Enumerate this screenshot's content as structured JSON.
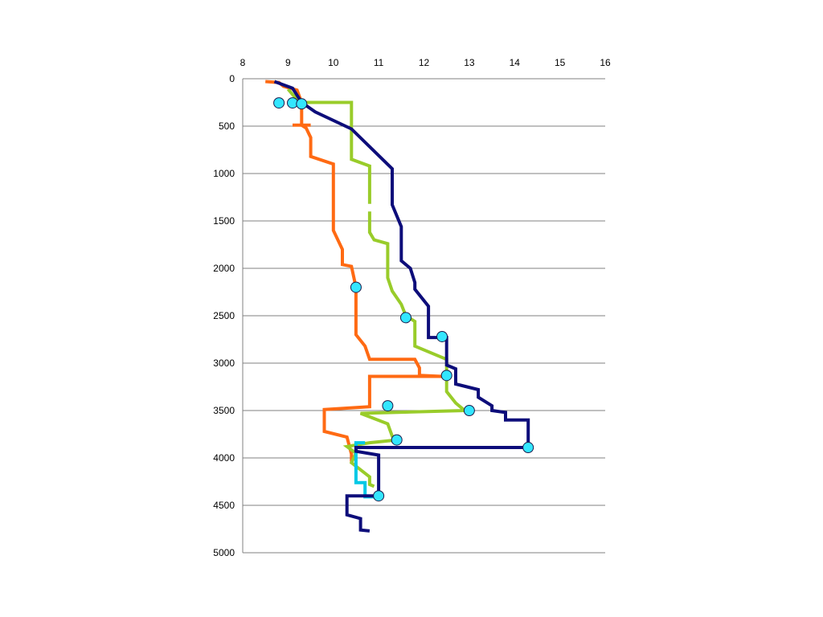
{
  "chart_data": {
    "type": "line",
    "xlim": [
      8,
      16
    ],
    "ylim": [
      0,
      5000
    ],
    "y_reversed": true,
    "x_axis_position": "top",
    "x_ticks": [
      8,
      9,
      10,
      11,
      12,
      13,
      14,
      15,
      16
    ],
    "y_ticks": [
      0,
      500,
      1000,
      1500,
      2000,
      2500,
      3000,
      3500,
      4000,
      4500,
      5000
    ],
    "grid": "horizontal",
    "legend": "none",
    "series": [
      {
        "color": "#ff6a13",
        "points": [
          [
            8.5,
            30
          ],
          [
            8.8,
            40
          ],
          [
            8.9,
            80
          ],
          [
            9.2,
            120
          ],
          [
            9.3,
            250
          ],
          [
            9.3,
            490
          ],
          [
            9.4,
            520
          ],
          [
            9.5,
            620
          ],
          [
            9.5,
            820
          ],
          [
            10.0,
            900
          ],
          [
            10.0,
            1600
          ],
          [
            10.2,
            1800
          ],
          [
            10.2,
            1960
          ],
          [
            10.4,
            1980
          ],
          [
            10.5,
            2200
          ],
          [
            10.5,
            2700
          ],
          [
            10.7,
            2820
          ],
          [
            10.8,
            2960
          ],
          [
            11.8,
            2960
          ],
          [
            11.9,
            3050
          ],
          [
            11.9,
            3130
          ],
          [
            12.4,
            3140
          ],
          [
            10.8,
            3140
          ],
          [
            10.8,
            3460
          ],
          [
            9.8,
            3490
          ],
          [
            9.8,
            3720
          ],
          [
            10.3,
            3780
          ],
          [
            10.4,
            3960
          ],
          [
            10.4,
            4040
          ]
        ]
      },
      {
        "color": "#ff6a13",
        "points": [
          [
            9.1,
            490
          ],
          [
            9.5,
            490
          ]
        ]
      },
      {
        "color": "#99cc2a",
        "points": [
          [
            9.0,
            110
          ],
          [
            9.25,
            250
          ],
          [
            10.4,
            250
          ],
          [
            10.4,
            850
          ],
          [
            10.8,
            920
          ],
          [
            10.8,
            1320
          ]
        ]
      },
      {
        "color": "#99cc2a",
        "points": [
          [
            10.8,
            1400
          ],
          [
            10.8,
            1620
          ],
          [
            10.9,
            1700
          ],
          [
            11.2,
            1740
          ],
          [
            11.2,
            2100
          ],
          [
            11.3,
            2240
          ],
          [
            11.5,
            2380
          ],
          [
            11.6,
            2500
          ],
          [
            11.8,
            2560
          ],
          [
            11.8,
            2820
          ],
          [
            12.5,
            2960
          ],
          [
            12.5,
            3300
          ],
          [
            12.7,
            3420
          ],
          [
            12.9,
            3500
          ],
          [
            10.6,
            3530
          ],
          [
            11.2,
            3640
          ],
          [
            11.3,
            3770
          ],
          [
            11.4,
            3810
          ],
          [
            10.8,
            3840
          ],
          [
            10.3,
            3880
          ],
          [
            10.5,
            3950
          ],
          [
            10.4,
            4050
          ],
          [
            10.8,
            4200
          ],
          [
            10.8,
            4280
          ],
          [
            10.9,
            4300
          ]
        ]
      },
      {
        "color": "#00c8e6",
        "points": [
          [
            10.7,
            3840
          ],
          [
            10.5,
            3840
          ],
          [
            10.5,
            4260
          ],
          [
            10.7,
            4260
          ],
          [
            10.7,
            4410
          ],
          [
            11.0,
            4410
          ]
        ]
      },
      {
        "color": "#0d0d7a",
        "points": [
          [
            8.7,
            30
          ],
          [
            9.1,
            100
          ],
          [
            9.3,
            250
          ],
          [
            9.6,
            350
          ],
          [
            10.4,
            530
          ],
          [
            11.3,
            950
          ],
          [
            11.3,
            1330
          ],
          [
            11.5,
            1560
          ],
          [
            11.5,
            1920
          ],
          [
            11.7,
            2000
          ],
          [
            11.8,
            2150
          ],
          [
            11.8,
            2220
          ],
          [
            12.1,
            2400
          ],
          [
            12.1,
            2730
          ],
          [
            12.5,
            2730
          ],
          [
            12.5,
            3020
          ],
          [
            12.7,
            3060
          ],
          [
            12.7,
            3220
          ],
          [
            13.2,
            3280
          ],
          [
            13.2,
            3360
          ],
          [
            13.5,
            3450
          ],
          [
            13.5,
            3500
          ],
          [
            13.8,
            3520
          ],
          [
            13.8,
            3600
          ],
          [
            14.3,
            3600
          ],
          [
            14.3,
            3890
          ],
          [
            10.5,
            3890
          ],
          [
            10.5,
            3930
          ],
          [
            11.0,
            3970
          ],
          [
            11.0,
            4400
          ],
          [
            10.3,
            4400
          ],
          [
            10.3,
            4600
          ],
          [
            10.6,
            4640
          ],
          [
            10.6,
            4760
          ],
          [
            10.8,
            4770
          ]
        ]
      }
    ],
    "markers": {
      "color": "#33e6ff",
      "points": [
        [
          8.8,
          255
        ],
        [
          9.1,
          255
        ],
        [
          9.3,
          265
        ],
        [
          10.5,
          2200
        ],
        [
          11.6,
          2520
        ],
        [
          12.4,
          2720
        ],
        [
          12.5,
          3130
        ],
        [
          11.2,
          3450
        ],
        [
          13.0,
          3500
        ],
        [
          11.4,
          3810
        ],
        [
          14.3,
          3890
        ],
        [
          11.0,
          4400
        ]
      ]
    }
  }
}
